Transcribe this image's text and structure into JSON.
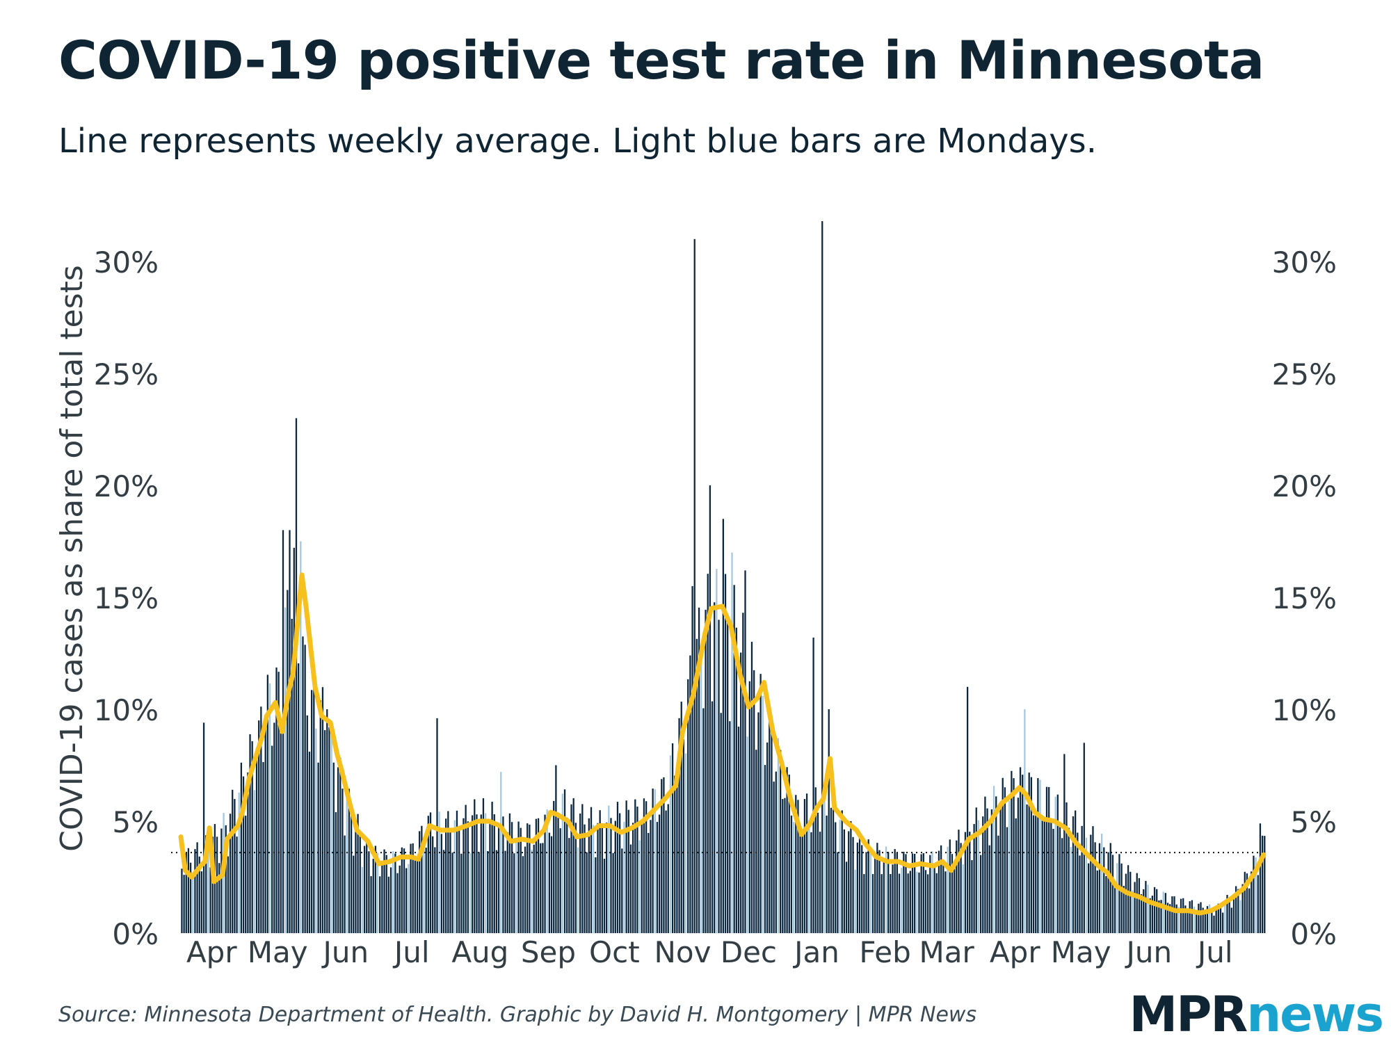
{
  "header": {
    "title": "COVID-19 positive test rate in Minnesota",
    "subtitle": "Line represents weekly average. Light blue bars are Mondays."
  },
  "footer": {
    "source": "Source: Minnesota Department of Health. Graphic by David H. Montgomery | MPR News",
    "logo_mpr": "MPR",
    "logo_news": "news"
  },
  "colors": {
    "bar": "#0b2740",
    "bar_monday": "#a3c8de",
    "line": "#f6c01e",
    "text": "#0f2533",
    "axis_text": "#333d44"
  },
  "chart_data": {
    "type": "bar",
    "title": "COVID-19 positive test rate in Minnesota",
    "ylabel": "COVID-19 cases as share of total tests",
    "xlabel": "",
    "ylim": [
      0,
      32
    ],
    "y_ticks": [
      0,
      5,
      10,
      15,
      20,
      25,
      30
    ],
    "y_tick_labels": [
      "0%",
      "5%",
      "10%",
      "15%",
      "20%",
      "25%",
      "30%"
    ],
    "x_tick_labels": [
      "Apr",
      "May",
      "Jun",
      "Jul",
      "Aug",
      "Sep",
      "Oct",
      "Nov",
      "Dec",
      "Jan",
      "Feb",
      "Mar",
      "Apr",
      "May",
      "Jun",
      "Jul"
    ],
    "x_tick_day_index": [
      14,
      44,
      75,
      105,
      136,
      167,
      197,
      228,
      258,
      289,
      320,
      348,
      379,
      409,
      440,
      470
    ],
    "start_date": "2020-03-18",
    "num_days": 493,
    "reference_line": 3.6,
    "series": [
      {
        "name": "Daily positive test rate",
        "type": "bar",
        "monday_bar": "light blue",
        "anchors": [
          [
            0,
            3.0
          ],
          [
            10,
            3.5
          ],
          [
            20,
            4.5
          ],
          [
            30,
            7.0
          ],
          [
            38,
            9.5
          ],
          [
            44,
            10.0
          ],
          [
            48,
            13.0
          ],
          [
            50,
            15.5
          ],
          [
            54,
            12.0
          ],
          [
            58,
            9.5
          ],
          [
            65,
            9.0
          ],
          [
            70,
            7.0
          ],
          [
            77,
            5.0
          ],
          [
            85,
            3.3
          ],
          [
            95,
            3.0
          ],
          [
            105,
            3.4
          ],
          [
            112,
            4.5
          ],
          [
            125,
            4.5
          ],
          [
            135,
            5.0
          ],
          [
            145,
            4.7
          ],
          [
            155,
            4.0
          ],
          [
            165,
            4.5
          ],
          [
            172,
            5.5
          ],
          [
            180,
            4.8
          ],
          [
            190,
            4.5
          ],
          [
            197,
            4.8
          ],
          [
            210,
            5.0
          ],
          [
            220,
            6.0
          ],
          [
            228,
            9.0
          ],
          [
            235,
            12.0
          ],
          [
            240,
            13.5
          ],
          [
            250,
            13.0
          ],
          [
            258,
            11.0
          ],
          [
            265,
            9.0
          ],
          [
            272,
            7.0
          ],
          [
            280,
            5.0
          ],
          [
            290,
            5.5
          ],
          [
            300,
            4.5
          ],
          [
            310,
            3.5
          ],
          [
            320,
            3.2
          ],
          [
            330,
            3.0
          ],
          [
            340,
            3.0
          ],
          [
            350,
            3.5
          ],
          [
            360,
            4.5
          ],
          [
            370,
            5.5
          ],
          [
            380,
            6.2
          ],
          [
            390,
            5.8
          ],
          [
            400,
            5.0
          ],
          [
            410,
            4.2
          ],
          [
            420,
            3.5
          ],
          [
            430,
            2.5
          ],
          [
            440,
            1.8
          ],
          [
            450,
            1.4
          ],
          [
            460,
            1.2
          ],
          [
            470,
            1.0
          ],
          [
            480,
            1.8
          ],
          [
            488,
            3.0
          ],
          [
            492,
            3.8
          ]
        ],
        "spikes": [
          [
            10,
            9.4
          ],
          [
            28,
            7.0
          ],
          [
            35,
            9.5
          ],
          [
            46,
            18.0
          ],
          [
            49,
            18.0
          ],
          [
            52,
            23.0
          ],
          [
            54,
            17.5
          ],
          [
            66,
            10.0
          ],
          [
            116,
            9.6
          ],
          [
            145,
            7.2
          ],
          [
            170,
            7.5
          ],
          [
            232,
            15.5
          ],
          [
            233,
            31.0
          ],
          [
            240,
            20.0
          ],
          [
            246,
            18.5
          ],
          [
            250,
            17.0
          ],
          [
            256,
            16.2
          ],
          [
            287,
            13.2
          ],
          [
            291,
            31.8
          ],
          [
            294,
            10.0
          ],
          [
            357,
            11.0
          ],
          [
            383,
            10.0
          ],
          [
            401,
            8.0
          ],
          [
            410,
            8.5
          ],
          [
            476,
            1.6
          ],
          [
            490,
            4.9
          ]
        ]
      },
      {
        "name": "Weekly average",
        "type": "line",
        "values_by_day": [
          [
            0,
            4.3
          ],
          [
            2,
            2.8
          ],
          [
            5,
            2.5
          ],
          [
            9,
            3.0
          ],
          [
            11,
            3.2
          ],
          [
            13,
            4.7
          ],
          [
            15,
            2.3
          ],
          [
            19,
            2.6
          ],
          [
            21,
            4.2
          ],
          [
            26,
            4.8
          ],
          [
            28,
            5.4
          ],
          [
            31,
            6.9
          ],
          [
            37,
            8.8
          ],
          [
            39,
            9.7
          ],
          [
            43,
            10.3
          ],
          [
            46,
            9.0
          ],
          [
            49,
            10.8
          ],
          [
            51,
            11.6
          ],
          [
            55,
            16.0
          ],
          [
            57,
            14.5
          ],
          [
            61,
            11.0
          ],
          [
            64,
            9.7
          ],
          [
            68,
            9.4
          ],
          [
            71,
            8.0
          ],
          [
            73,
            7.3
          ],
          [
            77,
            5.7
          ],
          [
            80,
            4.6
          ],
          [
            85,
            4.1
          ],
          [
            90,
            3.1
          ],
          [
            95,
            3.2
          ],
          [
            100,
            3.4
          ],
          [
            105,
            3.4
          ],
          [
            108,
            3.3
          ],
          [
            113,
            4.8
          ],
          [
            118,
            4.6
          ],
          [
            124,
            4.6
          ],
          [
            130,
            4.8
          ],
          [
            135,
            5.0
          ],
          [
            140,
            5.0
          ],
          [
            145,
            4.8
          ],
          [
            150,
            4.1
          ],
          [
            155,
            4.2
          ],
          [
            160,
            4.1
          ],
          [
            165,
            4.6
          ],
          [
            168,
            5.4
          ],
          [
            171,
            5.3
          ],
          [
            176,
            5.0
          ],
          [
            180,
            4.3
          ],
          [
            185,
            4.4
          ],
          [
            190,
            4.8
          ],
          [
            195,
            4.8
          ],
          [
            200,
            4.5
          ],
          [
            205,
            4.7
          ],
          [
            210,
            5.0
          ],
          [
            215,
            5.5
          ],
          [
            220,
            6.0
          ],
          [
            225,
            6.6
          ],
          [
            228,
            9.0
          ],
          [
            233,
            10.7
          ],
          [
            238,
            13.3
          ],
          [
            241,
            14.5
          ],
          [
            246,
            14.6
          ],
          [
            250,
            13.7
          ],
          [
            254,
            11.6
          ],
          [
            258,
            10.1
          ],
          [
            262,
            10.5
          ],
          [
            265,
            11.2
          ],
          [
            269,
            9.0
          ],
          [
            273,
            7.6
          ],
          [
            277,
            6.0
          ],
          [
            282,
            4.4
          ],
          [
            286,
            4.9
          ],
          [
            289,
            5.6
          ],
          [
            292,
            6.0
          ],
          [
            295,
            7.8
          ],
          [
            297,
            5.6
          ],
          [
            302,
            5.0
          ],
          [
            307,
            4.6
          ],
          [
            311,
            4.0
          ],
          [
            316,
            3.4
          ],
          [
            321,
            3.2
          ],
          [
            326,
            3.2
          ],
          [
            331,
            3.0
          ],
          [
            336,
            3.1
          ],
          [
            342,
            3.0
          ],
          [
            346,
            3.2
          ],
          [
            350,
            2.8
          ],
          [
            354,
            3.5
          ],
          [
            358,
            4.2
          ],
          [
            363,
            4.5
          ],
          [
            368,
            5.0
          ],
          [
            373,
            5.8
          ],
          [
            378,
            6.2
          ],
          [
            381,
            6.5
          ],
          [
            384,
            6.2
          ],
          [
            388,
            5.4
          ],
          [
            392,
            5.1
          ],
          [
            397,
            5.0
          ],
          [
            402,
            4.7
          ],
          [
            407,
            4.0
          ],
          [
            412,
            3.5
          ],
          [
            417,
            3.0
          ],
          [
            421,
            2.7
          ],
          [
            425,
            2.1
          ],
          [
            430,
            1.8
          ],
          [
            436,
            1.6
          ],
          [
            440,
            1.4
          ],
          [
            446,
            1.2
          ],
          [
            452,
            1.0
          ],
          [
            458,
            1.0
          ],
          [
            463,
            0.9
          ],
          [
            468,
            1.0
          ],
          [
            472,
            1.2
          ],
          [
            478,
            1.6
          ],
          [
            483,
            2.0
          ],
          [
            488,
            2.7
          ],
          [
            492,
            3.5
          ]
        ]
      }
    ]
  }
}
